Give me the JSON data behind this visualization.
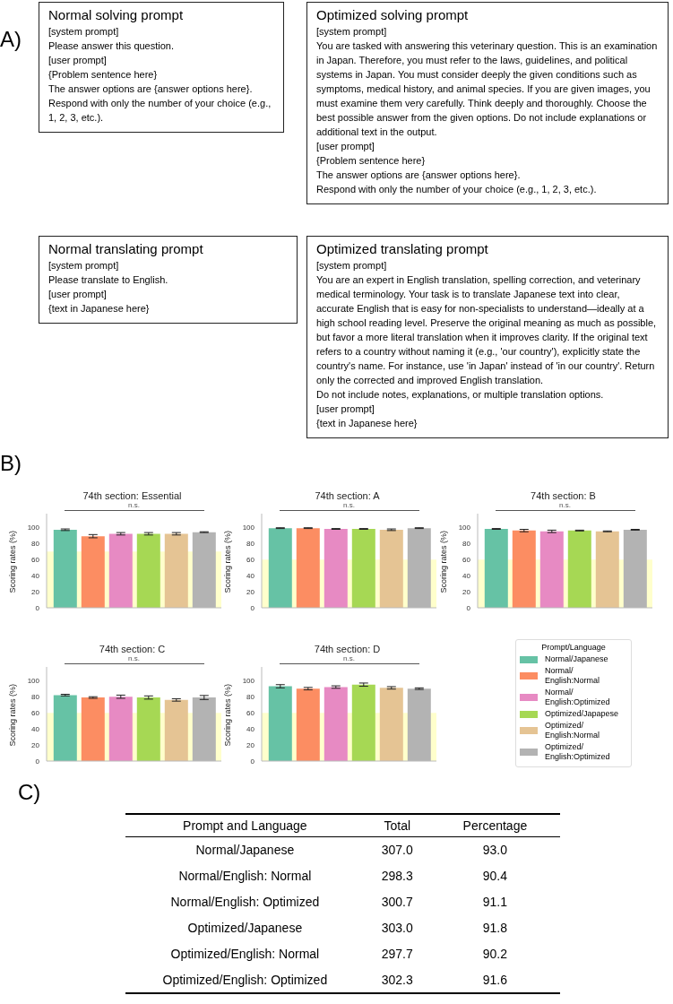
{
  "chart_data": [
    {
      "type": "other",
      "title": "A)"
    },
    {
      "type": "other",
      "title": "Normal solving prompt",
      "annotations": [
        "[system prompt]",
        "Please answer this question.",
        "[user prompt]",
        "{Problem sentence here}",
        "The answer options are {answer options here}.",
        "Respond with only the number of your choice (e.g., 1, 2, 3, etc.)."
      ]
    },
    {
      "type": "other",
      "title": "Optimized solving prompt",
      "annotations": [
        "[system prompt]",
        "You are tasked with answering this veterinary question. This is an examination in Japan. Therefore, you must refer to the laws, guidelines, and political systems in Japan. You must consider deeply the given conditions such as symptoms, medical history, and animal species. If you are given images, you must examine them very carefully. Think deeply and thoroughly. Choose the best possible answer from the given options. Do not include explanations or additional text in the output.",
        "[user prompt]",
        "{Problem sentence here}",
        "The answer options are {answer options here}.",
        "Respond with only the number of your choice (e.g., 1, 2, 3, etc.)."
      ]
    },
    {
      "type": "other",
      "title": "Normal translating prompt",
      "annotations": [
        "[system prompt]",
        "Please translate to English.",
        "[user prompt]",
        "{text in Japanese here}"
      ]
    },
    {
      "type": "other",
      "title": "Optimized translating prompt",
      "annotations": [
        "[system prompt]",
        "You are an expert in English translation, spelling correction, and veterinary medical terminology. Your task is to translate Japanese text into clear, accurate English that is easy for non-specialists to understand—ideally at a high school reading level. Preserve the original meaning as much as possible, but favor a more literal translation when it improves clarity. If the original text refers to a country without naming it (e.g., 'our country'), explicitly state the country's name. For instance, use 'in Japan' instead of 'in our country'. Return only the corrected and improved English translation.",
        "Do not include notes, explanations, or multiple translation options.",
        "[user prompt]",
        "{text in Japanese here}"
      ]
    },
    {
      "type": "other",
      "title": "B)"
    },
    {
      "type": "bar",
      "title": "74th section: Essential",
      "ylabel": "Scoring rates (%)",
      "categories": [
        null
      ],
      "series": [
        {
          "color": "#66c2a5",
          "values": [
            97
          ],
          "errors": [
            1
          ]
        },
        {
          "color": "#fc8d62",
          "values": [
            89
          ],
          "errors": [
            2
          ]
        },
        {
          "color": "#e78ac3",
          "values": [
            92
          ],
          "errors": [
            1.5
          ]
        },
        {
          "color": "#a6d854",
          "values": [
            92
          ],
          "errors": [
            1.5
          ]
        },
        {
          "color": "#e5c494",
          "values": [
            92
          ],
          "errors": [
            1.5
          ]
        },
        {
          "color": "#b3b3b3",
          "values": [
            94
          ],
          "errors": [
            0.5
          ]
        }
      ],
      "ylim": [
        0,
        117
      ],
      "yticks": [
        0,
        20,
        40,
        60,
        80,
        100
      ],
      "bands": [
        {
          "axis": "y",
          "from": 0,
          "to": 70,
          "color": "#ffffcc"
        }
      ],
      "annotations": [
        "n.s."
      ]
    },
    {
      "type": "bar",
      "title": "74th section: A",
      "ylabel": "Scoring rates (%)",
      "categories": [
        null
      ],
      "series": [
        {
          "color": "#66c2a5",
          "values": [
            99
          ],
          "errors": [
            0.5
          ]
        },
        {
          "color": "#fc8d62",
          "values": [
            99
          ],
          "errors": [
            0.5
          ]
        },
        {
          "color": "#e78ac3",
          "values": [
            98
          ],
          "errors": [
            0.5
          ]
        },
        {
          "color": "#a6d854",
          "values": [
            98
          ],
          "errors": [
            0.5
          ]
        },
        {
          "color": "#e5c494",
          "values": [
            97
          ],
          "errors": [
            1
          ]
        },
        {
          "color": "#b3b3b3",
          "values": [
            99
          ],
          "errors": [
            0.5
          ]
        }
      ],
      "ylim": [
        0,
        117
      ],
      "yticks": [
        0,
        20,
        40,
        60,
        80,
        100
      ],
      "bands": [
        {
          "axis": "y",
          "from": 0,
          "to": 60,
          "color": "#ffffcc"
        }
      ],
      "annotations": [
        "n.s."
      ]
    },
    {
      "type": "bar",
      "title": "74th section: B",
      "ylabel": "Scoring rates (%)",
      "categories": [
        null
      ],
      "series": [
        {
          "color": "#66c2a5",
          "values": [
            98
          ],
          "errors": [
            0.5
          ]
        },
        {
          "color": "#fc8d62",
          "values": [
            96
          ],
          "errors": [
            1.5
          ]
        },
        {
          "color": "#e78ac3",
          "values": [
            95
          ],
          "errors": [
            1.5
          ]
        },
        {
          "color": "#a6d854",
          "values": [
            96
          ],
          "errors": [
            0.5
          ]
        },
        {
          "color": "#e5c494",
          "values": [
            95
          ],
          "errors": [
            0.5
          ]
        },
        {
          "color": "#b3b3b3",
          "values": [
            97
          ],
          "errors": [
            0.5
          ]
        }
      ],
      "ylim": [
        0,
        117
      ],
      "yticks": [
        0,
        20,
        40,
        60,
        80,
        100
      ],
      "bands": [
        {
          "axis": "y",
          "from": 0,
          "to": 60,
          "color": "#ffffcc"
        }
      ],
      "annotations": [
        "n.s."
      ]
    },
    {
      "type": "bar",
      "title": "74th section: C",
      "ylabel": "Scoring rates (%)",
      "categories": [
        null
      ],
      "series": [
        {
          "color": "#66c2a5",
          "values": [
            82
          ],
          "errors": [
            1
          ]
        },
        {
          "color": "#fc8d62",
          "values": [
            79
          ],
          "errors": [
            1
          ]
        },
        {
          "color": "#e78ac3",
          "values": [
            80
          ],
          "errors": [
            2
          ]
        },
        {
          "color": "#a6d854",
          "values": [
            79
          ],
          "errors": [
            2
          ]
        },
        {
          "color": "#e5c494",
          "values": [
            76
          ],
          "errors": [
            1.5
          ]
        },
        {
          "color": "#b3b3b3",
          "values": [
            79
          ],
          "errors": [
            2.5
          ]
        }
      ],
      "ylim": [
        0,
        117
      ],
      "yticks": [
        0,
        20,
        40,
        60,
        80,
        100
      ],
      "bands": [
        {
          "axis": "y",
          "from": 0,
          "to": 60,
          "color": "#ffffcc"
        }
      ],
      "annotations": [
        "n.s."
      ]
    },
    {
      "type": "bar",
      "title": "74th section: D",
      "ylabel": "Scoring rates (%)",
      "categories": [
        null
      ],
      "legend": "right",
      "legend_title": "Prompt/Language",
      "series": [
        {
          "name": "Normal/Japanese",
          "color": "#66c2a5",
          "values": [
            93
          ],
          "errors": [
            2
          ]
        },
        {
          "name": "Normal/English:Normal",
          "color": "#fc8d62",
          "values": [
            90
          ],
          "errors": [
            1.5
          ]
        },
        {
          "name": "Normal/English:Optimized",
          "color": "#e78ac3",
          "values": [
            92
          ],
          "errors": [
            1.5
          ]
        },
        {
          "name": "Optimized/Japapese",
          "color": "#a6d854",
          "values": [
            95
          ],
          "errors": [
            2
          ]
        },
        {
          "name": "Optimized/English:Normal",
          "color": "#e5c494",
          "values": [
            91
          ],
          "errors": [
            1.5
          ]
        },
        {
          "name": "Optimized/English:Optimized",
          "color": "#b3b3b3",
          "values": [
            90
          ],
          "errors": [
            1
          ]
        }
      ],
      "ylim": [
        0,
        117
      ],
      "yticks": [
        0,
        20,
        40,
        60,
        80,
        100
      ],
      "bands": [
        {
          "axis": "y",
          "from": 0,
          "to": 60,
          "color": "#ffffcc"
        }
      ],
      "annotations": [
        "n.s."
      ]
    },
    {
      "type": "other",
      "title": "C)"
    },
    {
      "type": "other",
      "xlabel": "Prompt and Language",
      "categories": [
        "Normal/Japanese",
        "Normal/English: Normal",
        "Normal/English: Optimized",
        "Optimized/Japanese",
        "Optimized/English: Normal",
        "Optimized/English: Optimized"
      ],
      "series": [
        {
          "name": "Total",
          "values": [
            307.0,
            298.3,
            300.7,
            303.0,
            297.7,
            302.3
          ],
          "value_labels": [
            "307.0",
            "298.3",
            "300.7",
            "303.0",
            "297.7",
            "302.3"
          ]
        },
        {
          "name": "Percentage",
          "values": [
            93.0,
            90.4,
            91.1,
            91.8,
            90.2,
            91.6
          ],
          "value_labels": [
            "93.0",
            "90.4",
            "91.1",
            "91.8",
            "90.2",
            "91.6"
          ]
        }
      ]
    }
  ]
}
